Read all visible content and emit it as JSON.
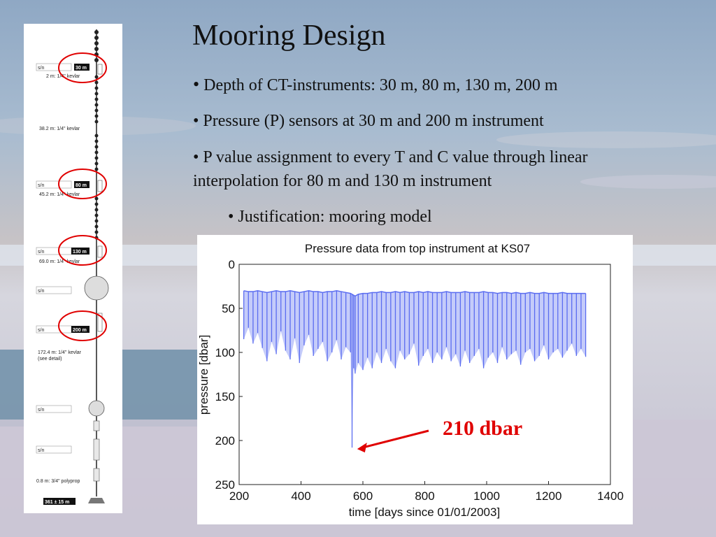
{
  "slide": {
    "title": "Mooring Design",
    "bullets": [
      "Depth of CT-instruments: 30 m, 80 m, 130 m, 200 m",
      "Pressure (P) sensors at 30 m and 200 m instrument",
      "P value assignment to every T and C value through linear interpolation for 80 m and 130 m instrument",
      "Justification: mooring model"
    ],
    "bullet_glyph": "•"
  },
  "mooring_diagram": {
    "sn_label": "s/n",
    "instruments": [
      "30 m",
      "80 m",
      "130 m",
      "200 m"
    ],
    "segments": [
      "2 m: 1/4\" kevlar",
      "38.2 m: 1/4\" kevlar",
      "45.2 m: 1/4\" kevlar",
      "69.0 m: 1/4\" kevlar",
      "172.4 m: 1/4\" kevlar",
      "(see detail)",
      "0.8 m: 3/4\" polyprop"
    ],
    "bottom_depth": "361 ± 15 m",
    "highlight_color": "#e00000"
  },
  "chart_data": {
    "type": "line",
    "title": "Pressure data from top instrument at KS07",
    "xlabel": "time [days since 01/01/2003]",
    "ylabel": "pressure [dbar]",
    "xlim": [
      200,
      1400
    ],
    "ylim": [
      250,
      0
    ],
    "y_reversed": true,
    "xticks": [
      200,
      400,
      600,
      800,
      1000,
      1200,
      1400
    ],
    "yticks": [
      0,
      50,
      100,
      150,
      200,
      250
    ],
    "grid": false,
    "series": [
      {
        "color": "#5a6cf0",
        "x": [
          215,
          230,
          245,
          260,
          275,
          290,
          305,
          320,
          335,
          350,
          365,
          380,
          395,
          410,
          425,
          440,
          455,
          470,
          485,
          500,
          515,
          530,
          545,
          560,
          565,
          570,
          575,
          585,
          600,
          615,
          630,
          645,
          660,
          675,
          690,
          705,
          720,
          735,
          750,
          765,
          780,
          795,
          810,
          825,
          840,
          855,
          870,
          885,
          900,
          915,
          930,
          945,
          960,
          975,
          990,
          1005,
          1020,
          1035,
          1050,
          1065,
          1080,
          1095,
          1110,
          1125,
          1140,
          1155,
          1170,
          1185,
          1200,
          1215,
          1230,
          1245,
          1260,
          1275,
          1290,
          1305,
          1320
        ],
        "top": [
          30,
          31,
          31,
          30,
          31,
          32,
          31,
          30,
          31,
          31,
          30,
          31,
          32,
          31,
          30,
          31,
          31,
          32,
          31,
          31,
          30,
          31,
          32,
          33,
          34,
          35,
          36,
          34,
          33,
          33,
          32,
          32,
          31,
          32,
          32,
          31,
          32,
          31,
          32,
          32,
          31,
          32,
          31,
          32,
          32,
          32,
          31,
          32,
          32,
          32,
          31,
          32,
          32,
          32,
          31,
          32,
          32,
          33,
          32,
          32,
          33,
          32,
          33,
          33,
          32,
          33,
          33,
          32,
          33,
          33,
          33,
          32,
          33,
          33,
          33,
          33,
          33
        ],
        "low": [
          85,
          72,
          90,
          78,
          95,
          110,
          88,
          102,
          76,
          98,
          108,
          84,
          112,
          92,
          80,
          104,
          96,
          88,
          110,
          100,
          86,
          108,
          94,
          100,
          208,
          118,
          124,
          112,
          120,
          106,
          118,
          100,
          112,
          96,
          110,
          118,
          98,
          108,
          102,
          90,
          115,
          104,
          96,
          112,
          100,
          108,
          94,
          110,
          102,
          116,
          98,
          112,
          104,
          96,
          118,
          106,
          100,
          112,
          94,
          108,
          102,
          98,
          114,
          100,
          96,
          110,
          104,
          92,
          108,
          100,
          96,
          106,
          98,
          90,
          104,
          96,
          105
        ]
      }
    ],
    "annotation": {
      "text": "210 dbar",
      "x": 568,
      "y": 208,
      "color": "#e00000"
    }
  }
}
